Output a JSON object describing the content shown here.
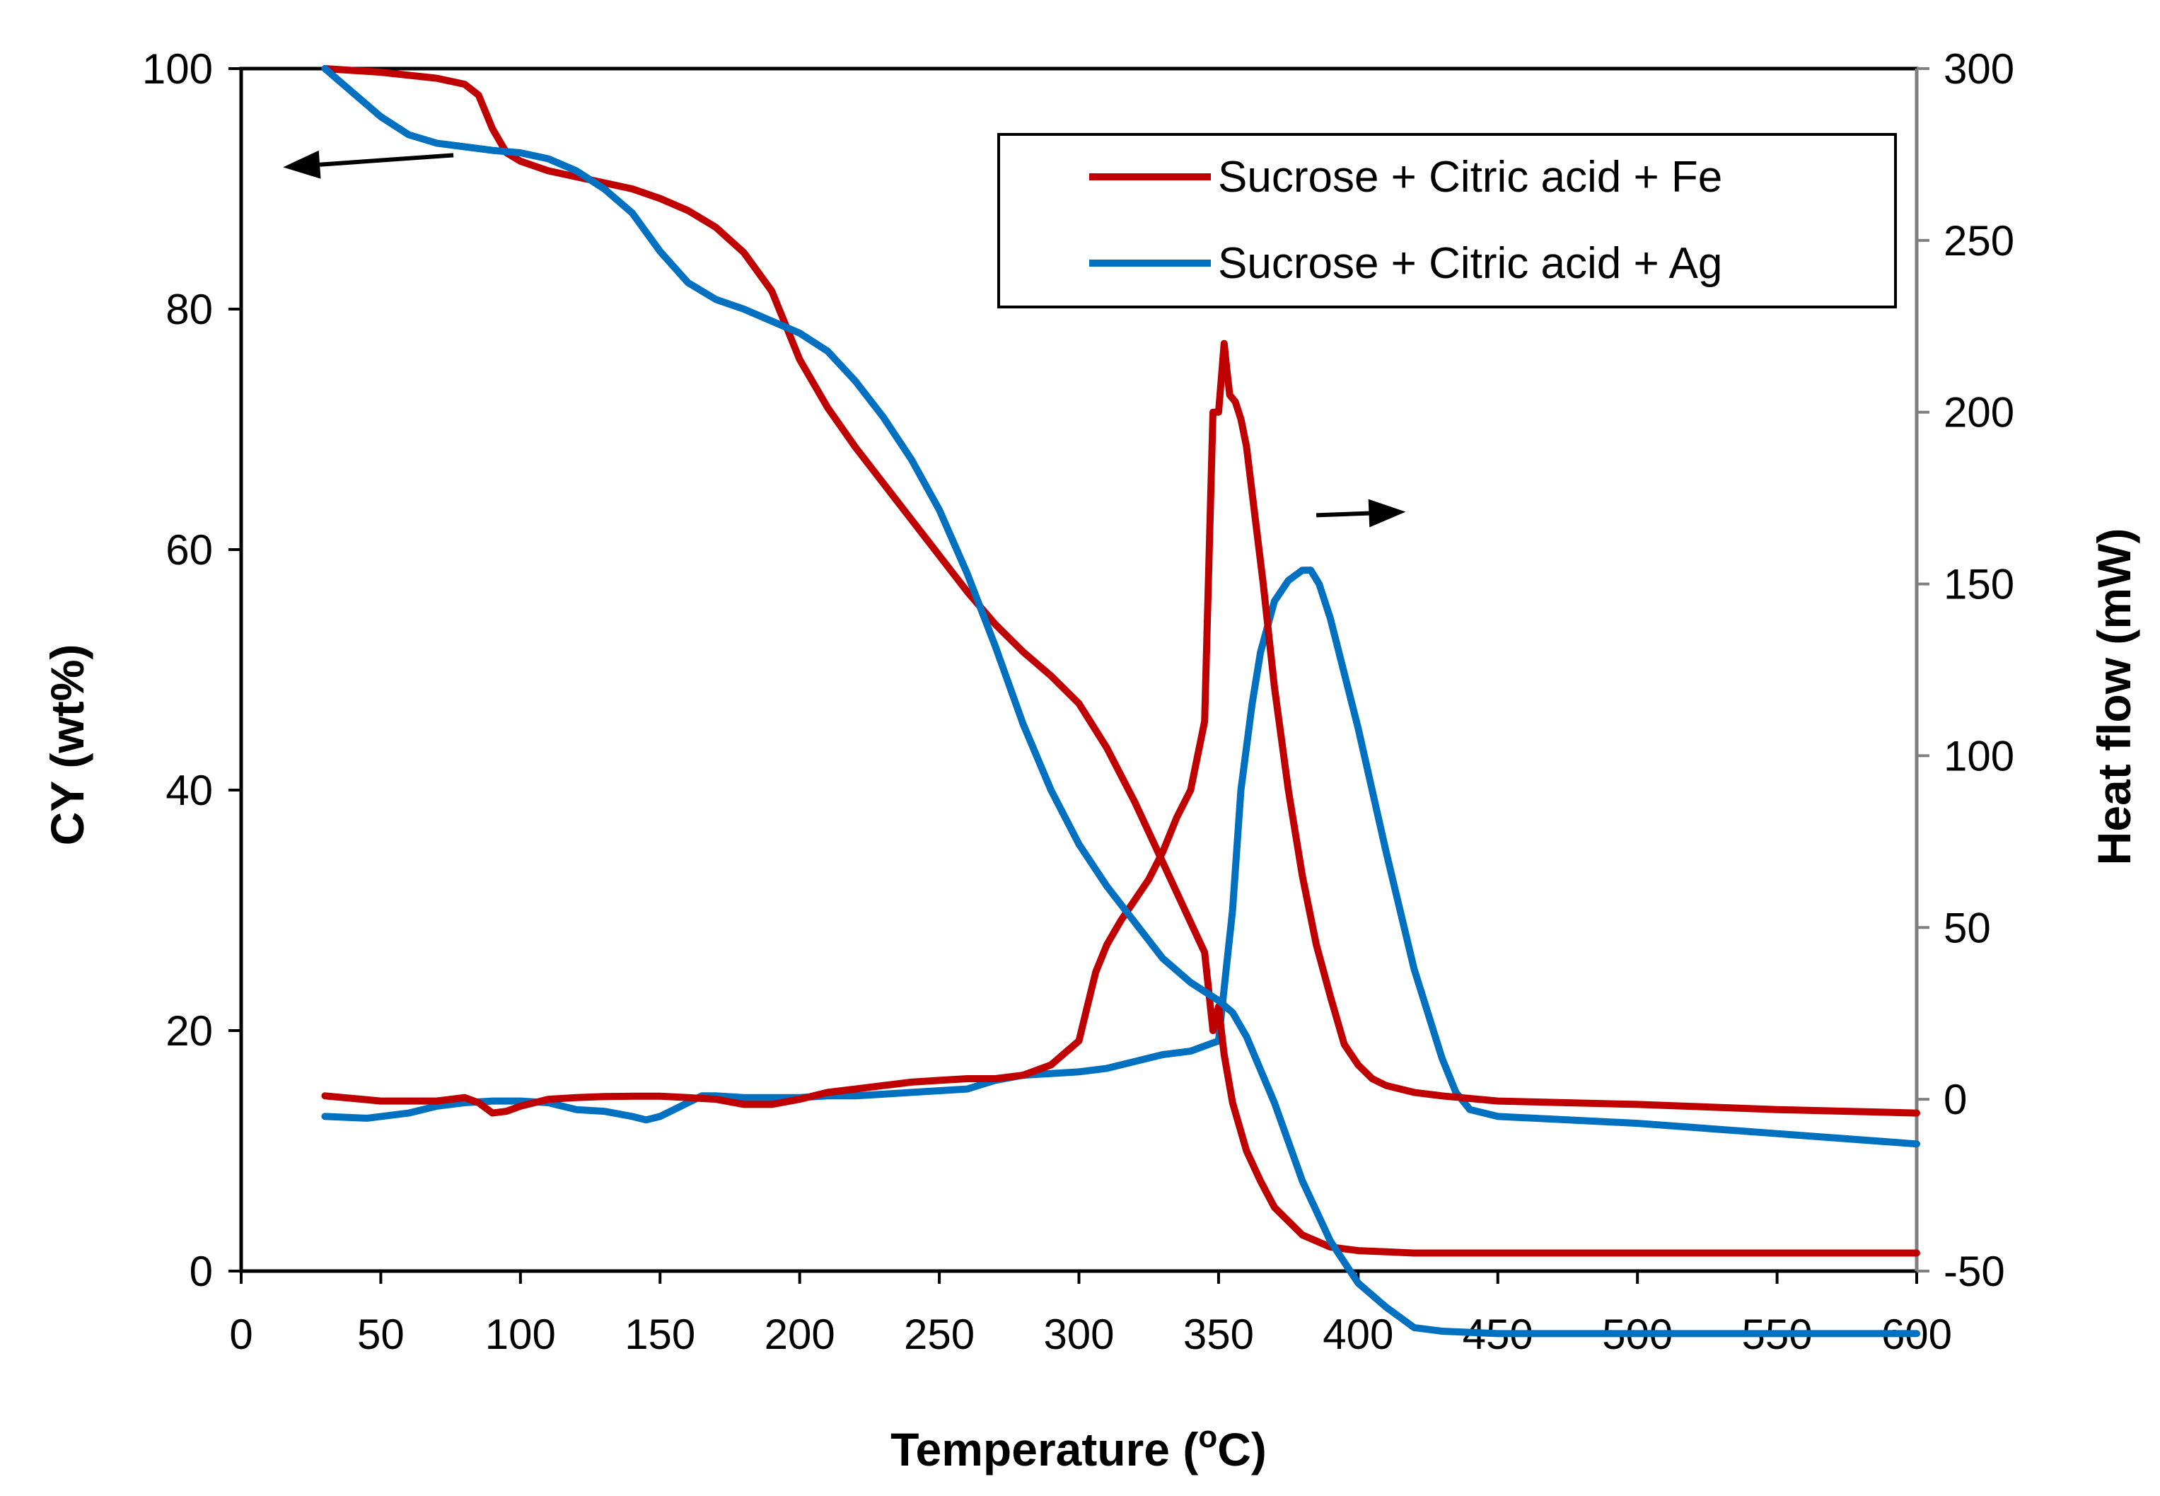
{
  "chart_data": {
    "type": "line",
    "title": "",
    "xlabel": "Temperature (",
    "xlabel_sup": "o",
    "xlabel_end": "C)",
    "ylabel": "CY (wt%)",
    "y2label": "Heat flow (mW)",
    "xlim": [
      0,
      600
    ],
    "ylim": [
      0,
      100
    ],
    "y2lim": [
      -50,
      300
    ],
    "x_ticks": [
      0,
      50,
      100,
      150,
      200,
      250,
      300,
      350,
      400,
      450,
      500,
      550,
      600
    ],
    "y_ticks": [
      0,
      20,
      40,
      60,
      80,
      100
    ],
    "y2_ticks": [
      -50,
      0,
      50,
      100,
      150,
      200,
      250,
      300
    ],
    "grid": false,
    "legend_position": "top-right",
    "legend": [
      "Sucrose + Citric acid + Fe",
      "Sucrose + Citric acid + Ag"
    ],
    "annotations": [
      {
        "type": "arrow",
        "meaning": "left-axis",
        "x": [
          76,
          15
        ],
        "y": [
          92.8,
          91.8
        ],
        "axis": "left"
      },
      {
        "type": "arrow",
        "meaning": "right-axis",
        "x": [
          385,
          417
        ],
        "y": [
          170,
          171
        ],
        "axis": "right"
      }
    ],
    "series": [
      {
        "name": "Sucrose + Citric acid + Fe (CY)",
        "legend": "Sucrose + Citric acid + Fe",
        "axis": "left",
        "color": "#c00000",
        "x": [
          30,
          50,
          70,
          80,
          85,
          90,
          95,
          100,
          110,
          120,
          130,
          140,
          150,
          160,
          170,
          180,
          190,
          200,
          210,
          220,
          230,
          240,
          250,
          260,
          270,
          280,
          290,
          300,
          310,
          320,
          330,
          340,
          345,
          348,
          350,
          352,
          355,
          360,
          365,
          370,
          380,
          390,
          400,
          410,
          420,
          430,
          450,
          500,
          550,
          600
        ],
        "y": [
          100,
          99.7,
          99.2,
          98.7,
          97.8,
          95,
          93,
          92.3,
          91.5,
          91,
          90.5,
          90,
          89.2,
          88.2,
          86.8,
          84.7,
          81.5,
          75.8,
          71.8,
          68.5,
          65.5,
          62.5,
          59.5,
          56.5,
          53.8,
          51.5,
          49.5,
          47.2,
          43.5,
          39,
          34,
          29,
          26.5,
          20,
          22,
          18,
          14,
          10,
          7.5,
          5.3,
          3,
          2,
          1.7,
          1.6,
          1.5,
          1.5,
          1.5,
          1.5,
          1.5,
          1.5
        ]
      },
      {
        "name": "Sucrose + Citric acid + Ag (CY)",
        "legend": "Sucrose + Citric acid + Ag",
        "axis": "left",
        "color": "#0070c0",
        "x": [
          30,
          40,
          50,
          60,
          70,
          80,
          90,
          100,
          110,
          120,
          130,
          140,
          150,
          160,
          170,
          180,
          190,
          200,
          210,
          220,
          230,
          240,
          250,
          260,
          270,
          280,
          290,
          300,
          310,
          320,
          330,
          340,
          350,
          355,
          360,
          370,
          380,
          390,
          400,
          410,
          420,
          430,
          450,
          500,
          550,
          600
        ],
        "y": [
          100,
          98,
          96,
          94.5,
          93.8,
          93.5,
          93.2,
          93,
          92.5,
          91.5,
          90,
          88,
          84.8,
          82.2,
          80.8,
          80,
          79,
          78,
          76.5,
          74,
          71,
          67.5,
          63.3,
          58,
          52,
          45.5,
          40,
          35.5,
          32,
          29,
          26,
          24,
          22.5,
          21.5,
          19.5,
          14,
          7.5,
          2.5,
          -1,
          -3,
          -4.7,
          -5,
          -5.2,
          -5.2,
          -5.2,
          -5.2
        ]
      },
      {
        "name": "Sucrose + Citric acid + Fe (Heat flow)",
        "legend": "Sucrose + Citric acid + Fe",
        "axis": "right",
        "color": "#c00000",
        "x": [
          30,
          50,
          70,
          80,
          85,
          90,
          95,
          100,
          110,
          120,
          130,
          140,
          150,
          160,
          170,
          180,
          190,
          200,
          210,
          220,
          230,
          240,
          250,
          260,
          270,
          280,
          290,
          300,
          303,
          306,
          310,
          315,
          320,
          325,
          330,
          335,
          340,
          345,
          348,
          350,
          351,
          352,
          353,
          354,
          356,
          358,
          360,
          363,
          366,
          370,
          375,
          380,
          385,
          390,
          395,
          400,
          405,
          410,
          420,
          430,
          450,
          500,
          550,
          600
        ],
        "y": [
          1,
          -0.5,
          -0.5,
          0.5,
          -1,
          -4,
          -3.5,
          -2,
          0,
          0.5,
          0.8,
          0.9,
          0.9,
          0.5,
          0,
          -1.5,
          -1.5,
          0,
          2,
          3,
          4,
          5,
          5.5,
          6,
          6,
          7,
          10,
          17,
          27,
          37,
          45,
          52,
          58,
          64,
          72,
          82,
          90,
          110,
          200,
          200,
          210,
          220,
          212,
          205,
          203,
          198,
          190,
          170,
          150,
          120,
          90,
          65,
          45,
          30,
          16,
          10,
          6,
          4,
          2,
          1,
          -0.5,
          -1.5,
          -3,
          -4
        ]
      },
      {
        "name": "Sucrose + Citric acid + Ag (Heat flow)",
        "legend": "Sucrose + Citric acid + Ag",
        "axis": "right",
        "color": "#0070c0",
        "x": [
          30,
          45,
          60,
          70,
          80,
          90,
          100,
          110,
          120,
          130,
          140,
          145,
          150,
          160,
          165,
          170,
          180,
          190,
          200,
          210,
          220,
          230,
          240,
          250,
          260,
          270,
          280,
          290,
          300,
          310,
          320,
          330,
          340,
          350,
          353,
          355,
          358,
          362,
          365,
          370,
          375,
          380,
          383,
          386,
          390,
          400,
          410,
          420,
          430,
          435,
          440,
          450,
          500,
          550,
          600
        ],
        "y": [
          -5,
          -5.5,
          -4,
          -2,
          -1,
          -0.5,
          -0.5,
          -1,
          -3,
          -3.5,
          -5,
          -6,
          -5,
          -1,
          1,
          1,
          0.5,
          0.5,
          0.5,
          1,
          1,
          1.5,
          2,
          2.5,
          3,
          5.5,
          7,
          7.5,
          8,
          9,
          11,
          13,
          14,
          17,
          40,
          55,
          90,
          115,
          130,
          145,
          151,
          154,
          154,
          150,
          140,
          108,
          72,
          38,
          12,
          2,
          -3,
          -5,
          -7,
          -10,
          -13
        ]
      }
    ]
  }
}
